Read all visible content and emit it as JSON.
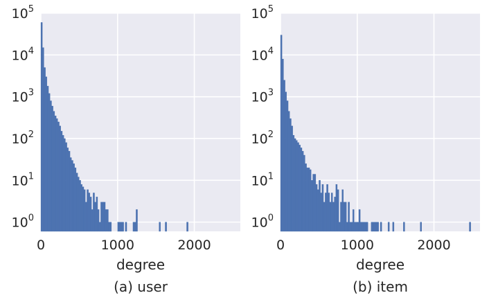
{
  "chart_data": [
    {
      "type": "bar",
      "caption": "(a) user",
      "xlabel": "degree",
      "ylabel": "",
      "yscale": "log",
      "xlim": [
        0,
        2600
      ],
      "ylim": [
        0.6,
        100000
      ],
      "xticks": [
        0,
        1000,
        2000
      ],
      "xtick_labels": [
        "0",
        "1000",
        "2000"
      ],
      "yticks": [
        1,
        10,
        100,
        1000,
        10000,
        100000
      ],
      "ytick_labels": [
        {
          "base": "10",
          "exp": "0"
        },
        {
          "base": "10",
          "exp": "1"
        },
        {
          "base": "10",
          "exp": "2"
        },
        {
          "base": "10",
          "exp": "3"
        },
        {
          "base": "10",
          "exp": "4"
        },
        {
          "base": "10",
          "exp": "5"
        }
      ],
      "grid": true,
      "color": "#4c72b0",
      "background": "#eaeaf2",
      "bin_width": 20,
      "bin_starts": [
        0,
        20,
        40,
        60,
        80,
        100,
        120,
        140,
        160,
        180,
        200,
        220,
        240,
        260,
        280,
        300,
        320,
        340,
        360,
        380,
        400,
        420,
        440,
        460,
        480,
        500,
        520,
        540,
        560,
        580,
        600,
        620,
        640,
        660,
        680,
        700,
        720,
        740,
        760,
        780,
        800,
        820,
        840,
        860,
        880,
        900,
        1000,
        1020,
        1040,
        1060,
        1100,
        1200,
        1220,
        1240,
        1540,
        1620,
        1900
      ],
      "values": [
        60000,
        15000,
        5000,
        3000,
        1800,
        1200,
        800,
        600,
        450,
        350,
        300,
        250,
        200,
        150,
        120,
        100,
        80,
        60,
        50,
        35,
        30,
        25,
        20,
        15,
        12,
        10,
        8,
        7,
        6,
        3,
        6,
        5,
        4,
        2,
        5,
        3,
        4,
        2,
        1,
        3,
        3,
        3,
        2,
        2,
        1,
        1,
        1,
        1,
        1,
        1,
        1,
        1,
        1,
        2,
        1,
        1,
        1
      ]
    },
    {
      "type": "bar",
      "caption": "(b) item",
      "xlabel": "degree",
      "ylabel": "",
      "yscale": "log",
      "xlim": [
        0,
        2600
      ],
      "ylim": [
        0.6,
        100000
      ],
      "xticks": [
        0,
        1000,
        2000
      ],
      "xtick_labels": [
        "0",
        "1000",
        "2000"
      ],
      "yticks": [
        1,
        10,
        100,
        1000,
        10000,
        100000
      ],
      "ytick_labels": [
        {
          "base": "10",
          "exp": "0"
        },
        {
          "base": "10",
          "exp": "1"
        },
        {
          "base": "10",
          "exp": "2"
        },
        {
          "base": "10",
          "exp": "3"
        },
        {
          "base": "10",
          "exp": "4"
        },
        {
          "base": "10",
          "exp": "5"
        }
      ],
      "grid": true,
      "color": "#4c72b0",
      "background": "#eaeaf2",
      "bin_width": 20,
      "bin_starts": [
        0,
        20,
        40,
        60,
        80,
        100,
        120,
        140,
        160,
        180,
        200,
        220,
        240,
        260,
        280,
        300,
        320,
        340,
        360,
        380,
        400,
        420,
        440,
        460,
        480,
        500,
        520,
        540,
        560,
        580,
        600,
        620,
        640,
        660,
        680,
        700,
        720,
        740,
        760,
        780,
        800,
        820,
        840,
        860,
        880,
        900,
        920,
        940,
        960,
        980,
        1000,
        1020,
        1040,
        1060,
        1080,
        1100,
        1120,
        1180,
        1200,
        1220,
        1240,
        1260,
        1300,
        1400,
        1460,
        1600,
        1820,
        2460
      ],
      "values": [
        30000,
        8000,
        2500,
        1300,
        800,
        450,
        300,
        200,
        120,
        100,
        90,
        80,
        70,
        60,
        50,
        40,
        25,
        20,
        20,
        18,
        10,
        14,
        14,
        8,
        6,
        10,
        5,
        8,
        3,
        5,
        8,
        5,
        3,
        5,
        3,
        4,
        8,
        6,
        1,
        3,
        6,
        3,
        3,
        1,
        3,
        1,
        1,
        2,
        1,
        1,
        1,
        2,
        1,
        1,
        1,
        1,
        1,
        1,
        1,
        1,
        1,
        1,
        1,
        1,
        1,
        1,
        1,
        1
      ]
    }
  ]
}
